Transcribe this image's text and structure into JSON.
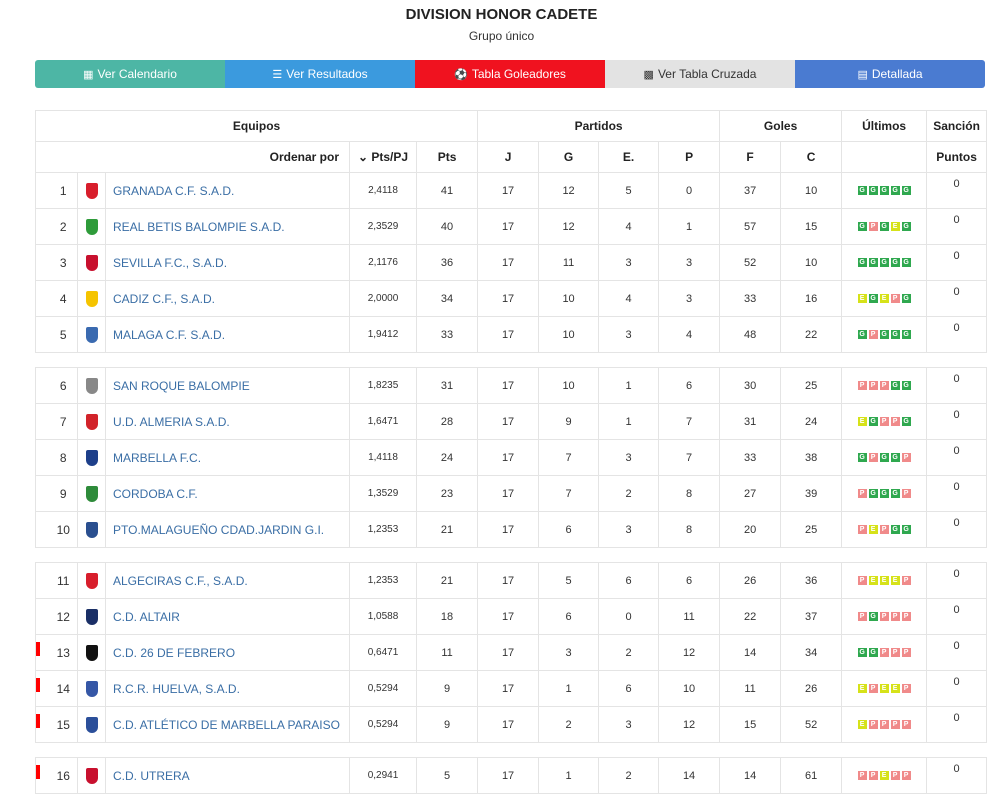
{
  "header": {
    "title": "DIVISION HONOR CADETE",
    "subtitle": "Grupo único"
  },
  "buttons": [
    {
      "label": "Ver Calendario",
      "icon": "calendar-icon"
    },
    {
      "label": "Ver Resultados",
      "icon": "list-icon"
    },
    {
      "label": "Tabla Goleadores",
      "icon": "soccer-ball-icon"
    },
    {
      "label": "Ver Tabla Cruzada",
      "icon": "grid-icon"
    },
    {
      "label": "Detallada",
      "icon": "card-icon"
    }
  ],
  "table": {
    "group_headers": {
      "equipos": "Equipos",
      "partidos": "Partidos",
      "goles": "Goles",
      "ultimos": "Últimos",
      "sancion": "Sanción"
    },
    "sub_headers": {
      "ordenar": "Ordenar por",
      "ptspj": "Pts/PJ",
      "pts": "Pts",
      "j": "J",
      "g": "G",
      "e": "E.",
      "p": "P",
      "f": "F",
      "c": "C",
      "puntos": "Puntos"
    },
    "rows": [
      {
        "pos": "1",
        "team": "GRANADA C.F. S.A.D.",
        "ratio": "2,4118",
        "pts": "41",
        "j": "17",
        "g": "12",
        "e": "5",
        "p": "0",
        "f": "37",
        "c": "10",
        "last": [
          "G",
          "G",
          "G",
          "G",
          "G"
        ],
        "sancion": "0",
        "relegation": false,
        "crest": "#d81e2c"
      },
      {
        "pos": "2",
        "team": "REAL BETIS BALOMPIE S.A.D.",
        "ratio": "2,3529",
        "pts": "40",
        "j": "17",
        "g": "12",
        "e": "4",
        "p": "1",
        "f": "57",
        "c": "15",
        "last": [
          "G",
          "P",
          "G",
          "E",
          "G"
        ],
        "sancion": "0",
        "relegation": false,
        "crest": "#2e9b3a"
      },
      {
        "pos": "3",
        "team": "SEVILLA F.C., S.A.D.",
        "ratio": "2,1176",
        "pts": "36",
        "j": "17",
        "g": "11",
        "e": "3",
        "p": "3",
        "f": "52",
        "c": "10",
        "last": [
          "G",
          "G",
          "G",
          "G",
          "G"
        ],
        "sancion": "0",
        "relegation": false,
        "crest": "#c8102e"
      },
      {
        "pos": "4",
        "team": "CADIZ C.F., S.A.D.",
        "ratio": "2,0000",
        "pts": "34",
        "j": "17",
        "g": "10",
        "e": "4",
        "p": "3",
        "f": "33",
        "c": "16",
        "last": [
          "E",
          "G",
          "E",
          "P",
          "G"
        ],
        "sancion": "0",
        "relegation": false,
        "crest": "#f5c400"
      },
      {
        "pos": "5",
        "team": "MALAGA C.F. S.A.D.",
        "ratio": "1,9412",
        "pts": "33",
        "j": "17",
        "g": "10",
        "e": "3",
        "p": "4",
        "f": "48",
        "c": "22",
        "last": [
          "G",
          "P",
          "G",
          "G",
          "G"
        ],
        "sancion": "0",
        "relegation": false,
        "crest": "#3a6ab0"
      },
      {
        "pos": "6",
        "team": "SAN ROQUE BALOMPIE",
        "ratio": "1,8235",
        "pts": "31",
        "j": "17",
        "g": "10",
        "e": "1",
        "p": "6",
        "f": "30",
        "c": "25",
        "last": [
          "P",
          "P",
          "P",
          "G",
          "G"
        ],
        "sancion": "0",
        "relegation": false,
        "crest": "#888888"
      },
      {
        "pos": "7",
        "team": "U.D. ALMERIA S.A.D.",
        "ratio": "1,6471",
        "pts": "28",
        "j": "17",
        "g": "9",
        "e": "1",
        "p": "7",
        "f": "31",
        "c": "24",
        "last": [
          "E",
          "G",
          "P",
          "P",
          "G"
        ],
        "sancion": "0",
        "relegation": false,
        "crest": "#d2232a"
      },
      {
        "pos": "8",
        "team": "MARBELLA F.C.",
        "ratio": "1,4118",
        "pts": "24",
        "j": "17",
        "g": "7",
        "e": "3",
        "p": "7",
        "f": "33",
        "c": "38",
        "last": [
          "G",
          "P",
          "G",
          "G",
          "P"
        ],
        "sancion": "0",
        "relegation": false,
        "crest": "#1d3f8a"
      },
      {
        "pos": "9",
        "team": "CORDOBA C.F.",
        "ratio": "1,3529",
        "pts": "23",
        "j": "17",
        "g": "7",
        "e": "2",
        "p": "8",
        "f": "27",
        "c": "39",
        "last": [
          "P",
          "G",
          "G",
          "G",
          "P"
        ],
        "sancion": "0",
        "relegation": false,
        "crest": "#2e8b3a"
      },
      {
        "pos": "10",
        "team": "PTO.MALAGUEÑO CDAD.JARDIN G.I.",
        "ratio": "1,2353",
        "pts": "21",
        "j": "17",
        "g": "6",
        "e": "3",
        "p": "8",
        "f": "20",
        "c": "25",
        "last": [
          "P",
          "E",
          "P",
          "G",
          "G"
        ],
        "sancion": "0",
        "relegation": false,
        "crest": "#2a4f8f"
      },
      {
        "pos": "11",
        "team": "ALGECIRAS C.F., S.A.D.",
        "ratio": "1,2353",
        "pts": "21",
        "j": "17",
        "g": "5",
        "e": "6",
        "p": "6",
        "f": "26",
        "c": "36",
        "last": [
          "P",
          "E",
          "E",
          "E",
          "P"
        ],
        "sancion": "0",
        "relegation": false,
        "crest": "#d81e2c"
      },
      {
        "pos": "12",
        "team": "C.D. ALTAIR",
        "ratio": "1,0588",
        "pts": "18",
        "j": "17",
        "g": "6",
        "e": "0",
        "p": "11",
        "f": "22",
        "c": "37",
        "last": [
          "P",
          "G",
          "P",
          "P",
          "P"
        ],
        "sancion": "0",
        "relegation": false,
        "crest": "#1a2f66"
      },
      {
        "pos": "13",
        "team": "C.D. 26 DE FEBRERO",
        "ratio": "0,6471",
        "pts": "11",
        "j": "17",
        "g": "3",
        "e": "2",
        "p": "12",
        "f": "14",
        "c": "34",
        "last": [
          "G",
          "G",
          "P",
          "P",
          "P"
        ],
        "sancion": "0",
        "relegation": true,
        "crest": "#111111"
      },
      {
        "pos": "14",
        "team": "R.C.R. HUELVA, S.A.D.",
        "ratio": "0,5294",
        "pts": "9",
        "j": "17",
        "g": "1",
        "e": "6",
        "p": "10",
        "f": "11",
        "c": "26",
        "last": [
          "E",
          "P",
          "E",
          "E",
          "P"
        ],
        "sancion": "0",
        "relegation": true,
        "crest": "#3557a6"
      },
      {
        "pos": "15",
        "team": "C.D. ATLÉTICO DE MARBELLA PARAISO",
        "ratio": "0,5294",
        "pts": "9",
        "j": "17",
        "g": "2",
        "e": "3",
        "p": "12",
        "f": "15",
        "c": "52",
        "last": [
          "E",
          "P",
          "P",
          "P",
          "P"
        ],
        "sancion": "0",
        "relegation": true,
        "crest": "#2b4f9a"
      },
      {
        "pos": "16",
        "team": "C.D. UTRERA",
        "ratio": "0,2941",
        "pts": "5",
        "j": "17",
        "g": "1",
        "e": "2",
        "p": "14",
        "f": "14",
        "c": "61",
        "last": [
          "P",
          "P",
          "E",
          "P",
          "P"
        ],
        "sancion": "0",
        "relegation": true,
        "crest": "#c8102e"
      }
    ]
  }
}
